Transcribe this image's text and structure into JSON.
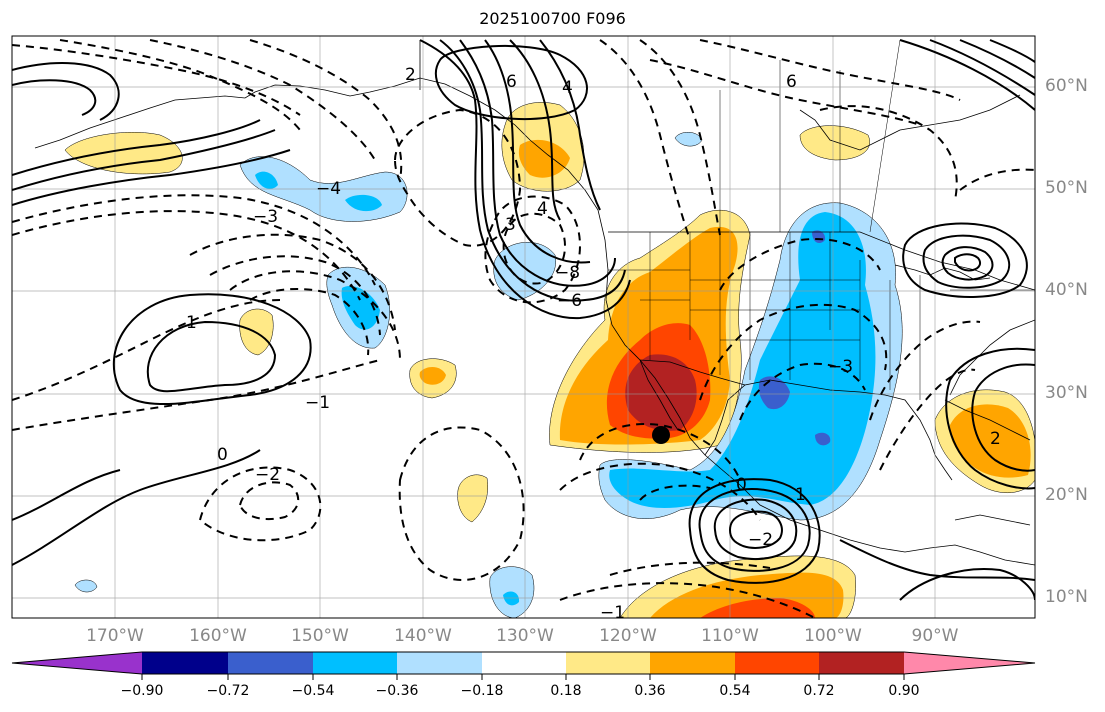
{
  "title": "2025100700 F096",
  "map": {
    "projection": "PlateCarree",
    "lon_range": [
      -180,
      -81
    ],
    "lat_range": [
      8,
      65
    ],
    "lon_labels": [
      "170°W",
      "160°W",
      "150°W",
      "140°W",
      "130°W",
      "120°W",
      "110°W",
      "100°W",
      "90°W"
    ],
    "lat_labels": [
      "60°N",
      "50°N",
      "40°N",
      "30°N",
      "20°N",
      "10°N"
    ],
    "marker": {
      "label": "point",
      "color": "#000000"
    }
  },
  "colorbar": {
    "tick_labels": [
      "−0.90",
      "−0.72",
      "−0.54",
      "−0.36",
      "−0.18",
      "0.18",
      "0.36",
      "0.54",
      "0.72",
      "0.90"
    ],
    "colors": [
      "#9932cc",
      "#00008b",
      "#3a5fcd",
      "#00bfff",
      "#b0e0ff",
      "#ffffff",
      "#ffe987",
      "#ffa500",
      "#ff4500",
      "#b22222",
      "#ff88aa"
    ]
  },
  "contour_labels": [
    "6",
    "4",
    "3",
    "2",
    "1",
    "0",
    "−1",
    "−2",
    "−3",
    "−4",
    "−6",
    "−8",
    "2",
    "1",
    "0",
    "−1",
    "−2",
    "−3",
    "4",
    "6"
  ]
}
